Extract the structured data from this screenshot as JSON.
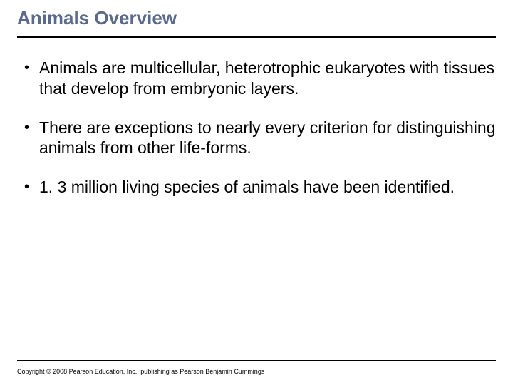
{
  "title": "Animals Overview",
  "title_color": "#5a6a8a",
  "title_fontsize": 26,
  "body_fontsize": 23,
  "bullet_color": "#000000",
  "divider_color": "#000000",
  "background_color": "#ffffff",
  "bullets": [
    "Animals are multicellular, heterotrophic eukaryotes with tissues that develop from embryonic layers.",
    "There are exceptions to nearly every criterion for distinguishing animals from other life-forms.",
    "1. 3 million living species of animals have been identified."
  ],
  "copyright": "Copyright © 2008 Pearson Education, Inc., publishing as Pearson Benjamin Cummings"
}
